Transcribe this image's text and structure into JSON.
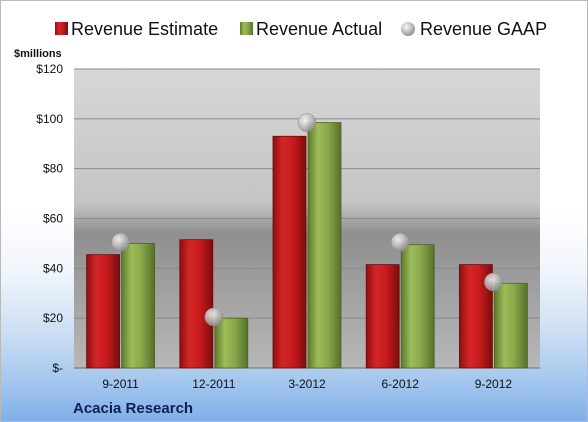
{
  "chart_data": {
    "type": "bar",
    "unit_label": "$millions",
    "company": "Acacia Research",
    "categories": [
      "9-2011",
      "12-2011",
      "3-2012",
      "6-2012",
      "9-2012"
    ],
    "series": [
      {
        "name": "Revenue Estimate",
        "kind": "bar",
        "color": "#c8191b",
        "values": [
          45.5,
          51.5,
          93,
          41.5,
          41.5
        ]
      },
      {
        "name": "Revenue Actual",
        "kind": "bar",
        "color": "#86a647",
        "values": [
          50,
          20,
          98.5,
          49.5,
          34
        ]
      },
      {
        "name": "Revenue GAAP",
        "kind": "marker",
        "color": "#b4b4b4",
        "values": [
          50.5,
          20.5,
          98.5,
          50.5,
          34.5
        ]
      }
    ],
    "yticks": [
      "$-",
      "$20",
      "$40",
      "$60",
      "$80",
      "$100",
      "$120"
    ],
    "ylim": [
      0,
      120
    ],
    "grid": true,
    "legend": "top"
  }
}
